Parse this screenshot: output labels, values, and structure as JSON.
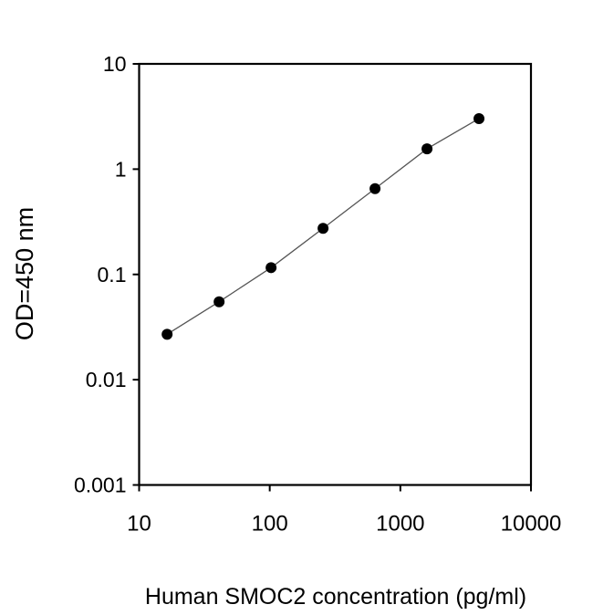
{
  "chart_data": {
    "type": "scatter",
    "title": "",
    "xlabel": "Human SMOC2 concentration (pg/ml)",
    "ylabel": "OD=450 nm",
    "x_scale": "log",
    "y_scale": "log",
    "xlim": [
      10,
      10000
    ],
    "ylim": [
      0.001,
      10
    ],
    "x_ticks": [
      "10",
      "100",
      "1000",
      "10000"
    ],
    "y_ticks": [
      "0.001",
      "0.01",
      "0.1",
      "1",
      "10"
    ],
    "grid": false,
    "fit_line": true,
    "marker_color": "#000000",
    "line_color": "#555555",
    "series": [
      {
        "x": [
          16.38,
          40.96,
          102.4,
          256,
          640,
          1600,
          4000
        ],
        "y": [
          0.027,
          0.055,
          0.116,
          0.274,
          0.653,
          1.56,
          3.02
        ]
      }
    ]
  }
}
